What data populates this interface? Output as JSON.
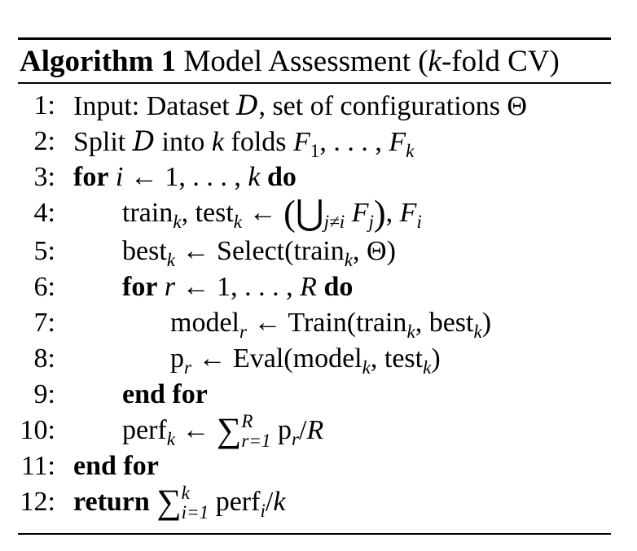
{
  "algorithm": {
    "label": "Algorithm 1",
    "title": "Model Assessment (",
    "title_var": "k",
    "title_end": "-fold CV)"
  },
  "lines": [
    {
      "num": "1:",
      "text": "Input: Dataset ",
      "cal": "D",
      "rest": ", set of configurations Θ"
    },
    {
      "num": "2:",
      "pre": "Split ",
      "cal": "D",
      "mid": " into ",
      "k": "k",
      "post": " folds ",
      "F": "F",
      "one": "1",
      "dots": ", . . . , ",
      "Fk": "F",
      "ksub": "k"
    },
    {
      "num": "3:",
      "kw1": "for",
      "i": "i",
      "arrow": " ← 1, . . . , ",
      "k": "k",
      "kw2": "do"
    },
    {
      "num": "4:",
      "train": "train",
      "sub": "k",
      "test": ", test",
      "arrow": " ← ",
      "union": "⋃",
      "jneq": "j≠i",
      "F": "F",
      "j": "j",
      "Fi": "F",
      "i": "i"
    },
    {
      "num": "5:",
      "best": "best",
      "sub": "k",
      "rest1": " ← Select(train",
      "rest2": ", Θ)"
    },
    {
      "num": "6:",
      "kw1": "for",
      "r": "r",
      "arrow": " ← 1, . . . , ",
      "R": "R",
      "kw2": "do"
    },
    {
      "num": "7:",
      "model": "model",
      "r": "r",
      "rest1": " ← Train(train",
      "mid": ", best",
      "end": ")"
    },
    {
      "num": "8:",
      "p": "p",
      "r": "r",
      "rest1": " ← Eval(model",
      "mid": ", test",
      "end": ")"
    },
    {
      "num": "9:",
      "kw": "end for"
    },
    {
      "num": "10:",
      "perf": "perf",
      "sub": "k",
      "arrow": " ← ",
      "sum": "∑",
      "upper": "R",
      "lower": "r=1",
      "p": " p",
      "r": "r",
      "div": "/",
      "R": "R"
    },
    {
      "num": "11:",
      "kw": "end for"
    },
    {
      "num": "12:",
      "kw": "return",
      "sum": "∑",
      "upper": "k",
      "lower": "i=1",
      "perf": " perf",
      "i": "i",
      "div": "/",
      "k": "k"
    }
  ]
}
